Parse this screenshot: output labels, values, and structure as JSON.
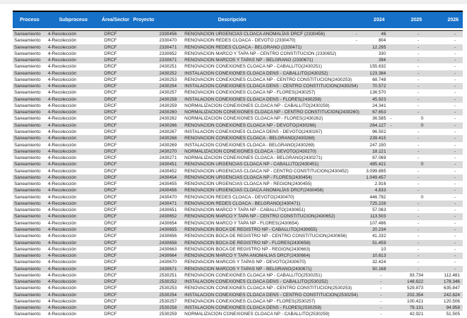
{
  "table": {
    "headers": [
      "Proceso",
      "Subproceso",
      "Área/Sector",
      "Proyecto",
      "Descripción",
      "2024",
      "2025",
      "2026"
    ],
    "row_constants": {
      "proceso": "Saneamiento",
      "subproceso": "4-Recolección",
      "area_sector": "DRCF"
    },
    "rows": [
      [
        "2330456",
        "RENOVACION URGENCIAS CLOACA ANOMALÍAS DRCF (2330456)",
        "- 46",
        "-",
        "-"
      ],
      [
        "2330470",
        "RENOVACION REDES CLOACA - DEVOTO (2330470)",
        "- 804",
        "-",
        "-"
      ],
      [
        "2330471",
        "RENOVACION REDES CLOACA - BELGRANO (2330471)",
        "12.295",
        "-",
        "-"
      ],
      [
        "2330652",
        "RENOVACION MARCO Y TAPA NP - CENTRO CONSTITUCION (2330652)",
        "330",
        "-",
        "-"
      ],
      [
        "2330671",
        "RENOVACION MARCOS Y TAPAS NP - BELGRANO (2330671)",
        "394",
        "-",
        "-"
      ],
      [
        "2430251",
        "RENOVACION CONEXIONES CLOACA NP - CABALLITO(2430251)",
        "155.632",
        "-",
        "-"
      ],
      [
        "2430252",
        "INSTALACION CONEXIONES CLOACA DENS - CABALLITO(2430252)",
        "123.384",
        "-",
        "-"
      ],
      [
        "2430253",
        "RENOVACION CONEXIONES CLOACA NP - CENTRO CONSTITUCION(2430253)",
        "68.748",
        "-",
        "-"
      ],
      [
        "2430254",
        "INSTALACION CONEXIONES CLOACA DENS - CENTRO CONSTITUCION(2430254)",
        "70.572",
        "-",
        "-"
      ],
      [
        "2430257",
        "RENOVACION CONEXIONES CLOACA NP - FLORES(2430257)",
        "136.570",
        "-",
        "-"
      ],
      [
        "2430258",
        "INSTALACION CONEXIONES CLOACA DENS - FLORES(2430258)",
        "45.923",
        "-",
        "-"
      ],
      [
        "2430259",
        "NORMALIZACION CONEXIONES CLOACA NP - CABALLITO(2430259)",
        "24.341",
        "-",
        "-"
      ],
      [
        "2430260",
        "NORMALIZACION CONEXIONES CLOACA NP - CENTRO CONSTITUCION(2430260)",
        "67.653",
        "-",
        "-"
      ],
      [
        "2430262",
        "NORMALIZACION CONEXIONES CLOACA NP - FLORES(2430262)",
        "36.585",
        "- 0",
        "-"
      ],
      [
        "2430266",
        "RENOVACION CONEXIONES CLOACA NP - DEVOTO(2430266)",
        "264.127",
        "- 0",
        "-"
      ],
      [
        "2430267",
        "INSTALACION CONEXIONES CLOACA DENS - DEVOTO(2430267)",
        "96.502",
        "-",
        "-"
      ],
      [
        "2430268",
        "RENOVACION CONEXIONES CLOACA - BELGRANO(2430268)",
        "239.415",
        "-",
        "-"
      ],
      [
        "2430269",
        "INSTALACION CONEXIONES CLOACA - BELGRANO(2430269)",
        "247.150",
        "-",
        "-"
      ],
      [
        "2430270",
        "NORMALIZACION CONEXIONES CLOACA - DEVOTO(2430270)",
        "18.121",
        "-",
        "-"
      ],
      [
        "2430271",
        "NORMALIZACION CONEXIONES CLOACA - BELGRANO(2430271)",
        "67.069",
        "-",
        "-"
      ],
      [
        "2430451",
        "RENOVACION URGENCIAS CLOACA NP - CABALLITO(2430451)",
        "485.421",
        "0",
        "-"
      ],
      [
        "2430452",
        "RENOVACION URGENCIAS CLOACA NP - CENTRO CONSTITUCION(2430452)",
        "3.099.895",
        "-",
        "-"
      ],
      [
        "2430454",
        "RENOVACION URGENCIAS CLOACA NP - FLORES(2430454)",
        "1.049.457",
        "-",
        "-"
      ],
      [
        "2430455",
        "RENOVACION URGENCIAS CLOACA NP - REGION(2430455)",
        "2.916",
        "-",
        "-"
      ],
      [
        "2430456",
        "RENOVACION URGENCIAS CLOACA ANOMALÍAS DRCF(2430456)",
        "4.833",
        "-",
        "-"
      ],
      [
        "2430470",
        "RENOVACION REDES CLOACA - DEVOTO(2430470)",
        "446.792",
        "0",
        "-"
      ],
      [
        "2430471",
        "RENOVACION REDES CLOACA - BELGRANO(2430471)",
        "725.228",
        "-",
        "-"
      ],
      [
        "2430651",
        "RENOVACION MARCO Y TAPA NP - CABALLITO(2430651)",
        "57.063",
        "-",
        "-"
      ],
      [
        "2430652",
        "RENOVACION MARCO Y TAPA NP - CENTRO CONSTITUCION(2430652)",
        "113.503",
        "-",
        "-"
      ],
      [
        "2430654",
        "RENOVACION MARCO Y TAPA NP - FLORES(2430654)",
        "107.486",
        "-",
        "-"
      ],
      [
        "2430655",
        "RENOVACION BOCA DE REGISTRO NP - CABALLITO(2430655)",
        "20.234",
        "-",
        "-"
      ],
      [
        "2430656",
        "RENOVACION BOCA DE REGISTRO NP - CENTRO CONSTITUCION(2430656)",
        "41.332",
        "-",
        "-"
      ],
      [
        "2430658",
        "RENOVACION BOCA DE REGISTRO NP - FLORES(2430658)",
        "51.459",
        "-",
        "-"
      ],
      [
        "2430663",
        "RENOVACION BOCA DE REGISTRO NP - REGION(2430663)",
        "10",
        "-",
        "-"
      ],
      [
        "2430664",
        "RENOVACION MARCO Y TAPA ANOMALIAS DRCF(2430664)",
        "10.613",
        "-",
        "-"
      ],
      [
        "2430670",
        "RENOVACION MARCOS Y TAPAS NP - DEVOTO(2430670)",
        "32.424",
        "-",
        "-"
      ],
      [
        "2430671",
        "RENOVACION MARCOS Y TAPAS NP - BELGRANO(2430671)",
        "50.168",
        "-",
        "-"
      ],
      [
        "2530251",
        "RENOVACION CONEXIONES CLOACA NP - CABALLITO(2530251)",
        "-",
        "93.734",
        "112.481"
      ],
      [
        "2530252",
        "INSTALACION CONEXIONES CLOACA DENS - CABALLITO(2530252)",
        "-",
        "148.622",
        "178.346"
      ],
      [
        "2530253",
        "RENOVACION CONEXIONES CLOACA NP - CENTRO CONSTITUCION(2530253)",
        "-",
        "529.873",
        "635.847"
      ],
      [
        "2530254",
        "INSTALACION CONEXIONES CLOACA DENS - CENTRO CONSTITUCION(2530254)",
        "-",
        "202.354",
        "242.824"
      ],
      [
        "2530257",
        "RENOVACION CONEXIONES CLOACA NP - FLORES(2530257)",
        "-",
        "100.421",
        "120.506"
      ],
      [
        "2530258",
        "INSTALACION CONEXIONES CLOACA DENS - FLORES(2530258)",
        "-",
        "79.131",
        "94.958"
      ],
      [
        "2530259",
        "NORMALIZACION CONEXIONES CLOACA NP - CABALLITO(2530259)",
        "-",
        "42.921",
        "51.505"
      ]
    ],
    "colors": {
      "header_bg": "#1670c8",
      "header_text": "#ffffff",
      "stripe_odd": "#d9d9d9",
      "stripe_even": "#ffffff",
      "body_text": "#1f1f1f",
      "top_strip": "#f0f0f0",
      "border_line": "#000000"
    }
  }
}
